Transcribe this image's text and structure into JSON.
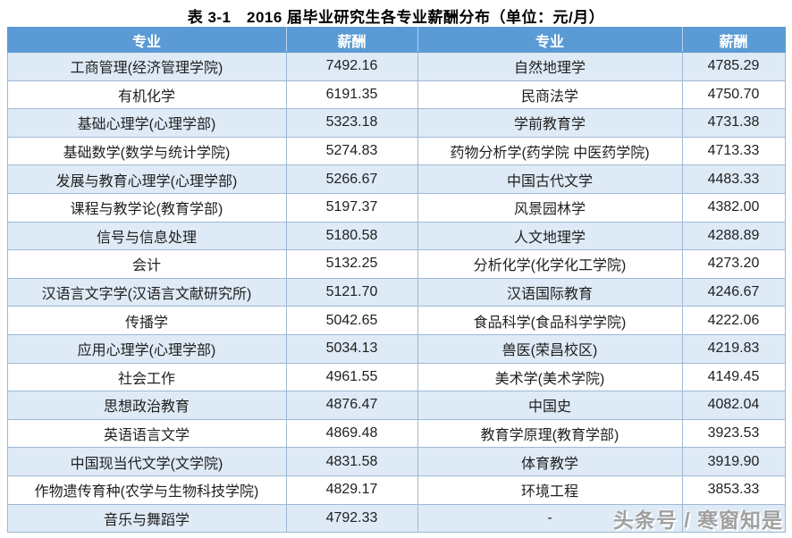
{
  "title": "表 3-1　2016 届毕业研究生各专业薪酬分布（单位：元/月）",
  "watermark": "头条号 / 寒窗知是",
  "colors": {
    "header_bg": "#5B9BD5",
    "header_text": "#FFFFFF",
    "row_alt_bg": "#DEEAF6",
    "row_bg": "#FFFFFF",
    "border": "#9EB9D4",
    "text": "#1F1F1F",
    "watermark": "#A0A0A0"
  },
  "table": {
    "headers": [
      "专业",
      "薪酬",
      "专业",
      "薪酬"
    ],
    "rows": [
      [
        "工商管理(经济管理学院)",
        "7492.16",
        "自然地理学",
        "4785.29"
      ],
      [
        "有机化学",
        "6191.35",
        "民商法学",
        "4750.70"
      ],
      [
        "基础心理学(心理学部)",
        "5323.18",
        "学前教育学",
        "4731.38"
      ],
      [
        "基础数学(数学与统计学院)",
        "5274.83",
        "药物分析学(药学院 中医药学院)",
        "4713.33"
      ],
      [
        "发展与教育心理学(心理学部)",
        "5266.67",
        "中国古代文学",
        "4483.33"
      ],
      [
        "课程与教学论(教育学部)",
        "5197.37",
        "风景园林学",
        "4382.00"
      ],
      [
        "信号与信息处理",
        "5180.58",
        "人文地理学",
        "4288.89"
      ],
      [
        "会计",
        "5132.25",
        "分析化学(化学化工学院)",
        "4273.20"
      ],
      [
        "汉语言文字学(汉语言文献研究所)",
        "5121.70",
        "汉语国际教育",
        "4246.67"
      ],
      [
        "传播学",
        "5042.65",
        "食品科学(食品科学学院)",
        "4222.06"
      ],
      [
        "应用心理学(心理学部)",
        "5034.13",
        "兽医(荣昌校区)",
        "4219.83"
      ],
      [
        "社会工作",
        "4961.55",
        "美术学(美术学院)",
        "4149.45"
      ],
      [
        "思想政治教育",
        "4876.47",
        "中国史",
        "4082.04"
      ],
      [
        "英语语言文学",
        "4869.48",
        "教育学原理(教育学部)",
        "3923.53"
      ],
      [
        "中国现当代文学(文学院)",
        "4831.58",
        "体育教学",
        "3919.90"
      ],
      [
        "作物遗传育种(农学与生物科技学院)",
        "4829.17",
        "环境工程",
        "3853.33"
      ],
      [
        "音乐与舞蹈学",
        "4792.33",
        "-",
        ""
      ]
    ]
  }
}
